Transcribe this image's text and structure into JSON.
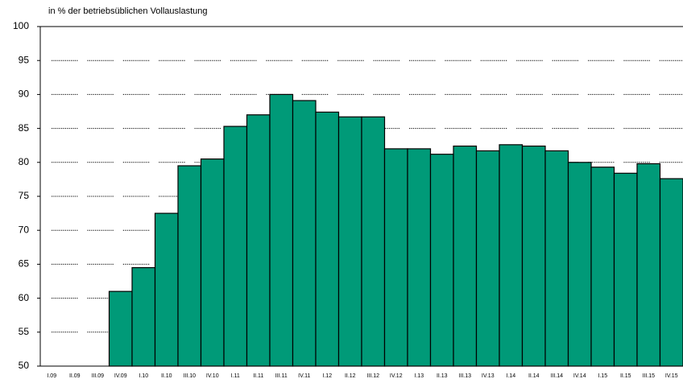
{
  "chart_data": {
    "type": "bar",
    "title": "in % der betriebsüblichen Vollauslastung",
    "categories": [
      "I.09",
      "II.09",
      "III.09",
      "IV.09",
      "I.10",
      "II.10",
      "III.10",
      "IV.10",
      "I.11",
      "II.11",
      "III.11",
      "IV.11",
      "I.12",
      "II.12",
      "III.12",
      "IV.12",
      "I.13",
      "II.13",
      "III.13",
      "IV.13",
      "I.14",
      "II.14",
      "III.14",
      "IV.14",
      "I.15",
      "II.15",
      "III.15",
      "IV.15"
    ],
    "values": [
      null,
      null,
      null,
      61,
      64.5,
      72.5,
      79.5,
      80.5,
      85.3,
      87,
      90,
      89.1,
      87.4,
      86.7,
      86.7,
      82,
      82,
      81.2,
      82.4,
      81.7,
      82.6,
      82.4,
      81.7,
      80,
      79.3,
      78.4,
      79.8,
      77.6
    ],
    "color": "#009a78",
    "ylim": [
      50,
      100
    ],
    "yticks": [
      50,
      55,
      60,
      65,
      70,
      75,
      80,
      85,
      90,
      95,
      100
    ],
    "grid": true
  }
}
